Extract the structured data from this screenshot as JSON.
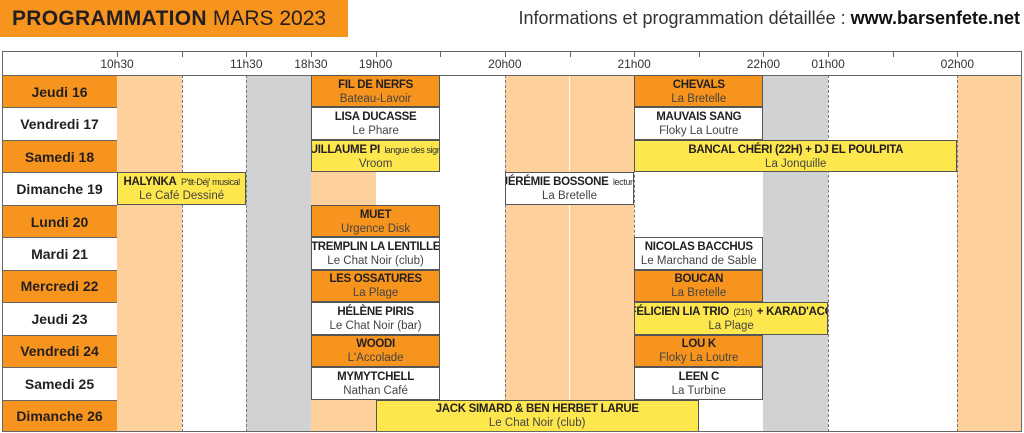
{
  "header": {
    "title_bold": "PROGRAMMATION",
    "title_month": "MARS 2023",
    "info_text": "Informations et programmation détaillée : ",
    "info_url": "www.barsenfete.net"
  },
  "colors": {
    "orange": "#f7941d",
    "peach": "#fdd09c",
    "gray": "#d1d2d4",
    "yellow": "#fde74c",
    "white": "#ffffff"
  },
  "timeline": {
    "slots": [
      {
        "time": "10h30",
        "label": "10h30",
        "bg": "peach"
      },
      {
        "time": "11h00",
        "label": "",
        "bg": "white"
      },
      {
        "time": "11h30",
        "label": "11h30",
        "bg": "gray"
      },
      {
        "time": "18h30",
        "label": "18h30",
        "bg": "white"
      },
      {
        "time": "19h00",
        "label": "19h00",
        "bg": "white"
      },
      {
        "time": "19h30",
        "label": "",
        "bg": "white"
      },
      {
        "time": "20h00",
        "label": "20h00",
        "bg": "peach"
      },
      {
        "time": "20h30",
        "label": "",
        "bg": "peach"
      },
      {
        "time": "21h00",
        "label": "21h00",
        "bg": "white"
      },
      {
        "time": "21h30",
        "label": "",
        "bg": "white"
      },
      {
        "time": "22h00",
        "label": "22h00",
        "bg": "gray"
      },
      {
        "time": "01h00",
        "label": "01h00",
        "bg": "white"
      },
      {
        "time": "01h30",
        "label": "",
        "bg": "white"
      },
      {
        "time": "02h00",
        "label": "02h00",
        "bg": "peach"
      }
    ]
  },
  "days": [
    {
      "label": "Jeudi 16",
      "style": "orange",
      "events": [
        {
          "title": "FIL DE NERFS",
          "note": "",
          "venue": "Bateau-Lavoir",
          "start": "18h30",
          "end": "19h30",
          "color": "orange"
        },
        {
          "title": "CHEVALS",
          "note": "",
          "venue": "La Bretelle",
          "start": "21h00",
          "end": "22h00",
          "color": "orange"
        }
      ]
    },
    {
      "label": "Vendredi 17",
      "style": "white",
      "events": [
        {
          "title": "LISA DUCASSE",
          "note": "",
          "venue": "Le Phare",
          "start": "18h30",
          "end": "19h30",
          "color": "white"
        },
        {
          "title": "MAUVAIS SANG",
          "note": "",
          "venue": "Floky La Loutre",
          "start": "21h00",
          "end": "22h00",
          "color": "white"
        }
      ]
    },
    {
      "label": "Samedi 18",
      "style": "orange",
      "events": [
        {
          "title": "GUILLAUME PI",
          "note": "langue des signes",
          "venue": "Vroom",
          "start": "18h30",
          "end": "19h30",
          "color": "yellow"
        },
        {
          "title": "BANCAL CHÉRI (22H) + DJ EL POULPITA",
          "note": "",
          "venue": "La Jonquille",
          "start": "21h00",
          "end": "02h00",
          "color": "yellow"
        }
      ]
    },
    {
      "label": "Dimanche 19",
      "style": "white",
      "sunday": true,
      "events": [
        {
          "title": "HALYNKA",
          "note": "P'tit-Déj' musical",
          "venue": "Le Café Dessiné",
          "start": "10h30",
          "end": "11h30",
          "color": "yellow"
        },
        {
          "title": "JÉRÉMIE BOSSONE",
          "note": "lecture",
          "venue": "La Bretelle",
          "start": "20h00",
          "end": "21h00",
          "color": "white"
        }
      ]
    },
    {
      "label": "Lundi 20",
      "style": "orange",
      "events": [
        {
          "title": "MUET",
          "note": "",
          "venue": "Urgence Disk",
          "start": "18h30",
          "end": "19h30",
          "color": "orange"
        }
      ]
    },
    {
      "label": "Mardi 21",
      "style": "white",
      "events": [
        {
          "title": "TREMPLIN LA LENTILLE",
          "note": "",
          "venue": "Le Chat Noir (club)",
          "start": "18h30",
          "end": "19h30",
          "color": "white"
        },
        {
          "title": "NICOLAS BACCHUS",
          "note": "",
          "venue": "Le Marchand de Sable",
          "start": "21h00",
          "end": "22h00",
          "color": "white"
        }
      ]
    },
    {
      "label": "Mercredi 22",
      "style": "orange",
      "events": [
        {
          "title": "LES OSSATURES",
          "note": "",
          "venue": "La Plage",
          "start": "18h30",
          "end": "19h30",
          "color": "orange"
        },
        {
          "title": "BOUCAN",
          "note": "",
          "venue": "La Bretelle",
          "start": "21h00",
          "end": "22h00",
          "color": "orange"
        }
      ]
    },
    {
      "label": "Jeudi 23",
      "style": "white",
      "events": [
        {
          "title": "HÉLÈNE PIRIS",
          "note": "",
          "venue": "Le Chat Noir (bar)",
          "start": "18h30",
          "end": "19h30",
          "color": "white"
        },
        {
          "title": "FÉLICIEN LIA TRIO",
          "note": "(21h)",
          "title2": "+ KARAD'ACC",
          "venue": "La Plage",
          "start": "21h00",
          "end": "01h00",
          "color": "yellow"
        }
      ]
    },
    {
      "label": "Vendredi 24",
      "style": "orange",
      "events": [
        {
          "title": "WOODI",
          "note": "",
          "venue": "L'Accolade",
          "start": "18h30",
          "end": "19h30",
          "color": "orange"
        },
        {
          "title": "LOU K",
          "note": "",
          "venue": "Floky La Loutre",
          "start": "21h00",
          "end": "22h00",
          "color": "orange"
        }
      ]
    },
    {
      "label": "Samedi 25",
      "style": "white",
      "events": [
        {
          "title": "MYMYTCHELL",
          "note": "",
          "venue": "Nathan Café",
          "start": "18h30",
          "end": "19h30",
          "color": "white"
        },
        {
          "title": "LEEN C",
          "note": "",
          "venue": "La Turbine",
          "start": "21h00",
          "end": "22h00",
          "color": "white"
        }
      ]
    },
    {
      "label": "Dimanche 26",
      "style": "orange",
      "sunday": true,
      "events": [
        {
          "title": "JACK SIMARD & BEN HERBET LARUE",
          "note": "",
          "venue": "Le Chat Noir (club)",
          "start": "19h00",
          "end": "21h30",
          "color": "yellow"
        }
      ]
    }
  ]
}
